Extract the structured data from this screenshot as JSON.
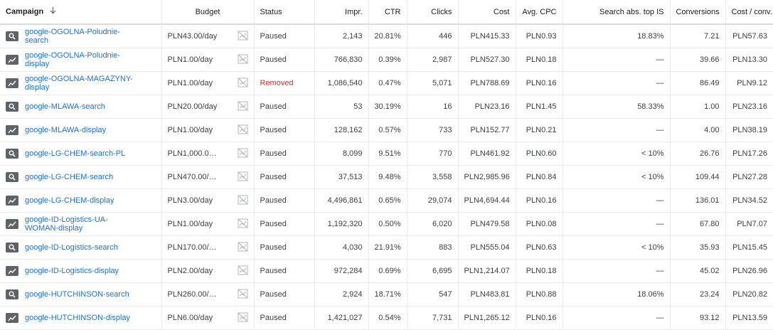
{
  "columns": {
    "campaign": "Campaign",
    "budget": "Budget",
    "status": "Status",
    "impr": "Impr.",
    "ctr": "CTR",
    "clicks": "Clicks",
    "cost": "Cost",
    "avg_cpc": "Avg. CPC",
    "search_abs_top_is": "Search abs. top IS",
    "conversions": "Conversions",
    "cost_per_conv": "Cost / conv."
  },
  "sort_icon": "arrow-down-icon",
  "colors": {
    "link": "#1a73e8",
    "removed": "#d93025",
    "icon_bg": "#5f6368"
  },
  "rows": [
    {
      "type": "search",
      "name": "google-OGOLNA-Poludnie-search",
      "budget": "PLN43.00/day",
      "status": "Paused",
      "impr": "2,143",
      "ctr": "20.81%",
      "clicks": "446",
      "cost": "PLN415.33",
      "avg_cpc": "PLN0.93",
      "abs_top": "18.83%",
      "conv": "7.21",
      "cpa": "PLN57.63"
    },
    {
      "type": "display",
      "name": "google-OGOLNA-Poludnie-display",
      "budget": "PLN1.00/day",
      "status": "Paused",
      "impr": "766,830",
      "ctr": "0.39%",
      "clicks": "2,987",
      "cost": "PLN527.30",
      "avg_cpc": "PLN0.18",
      "abs_top": "—",
      "conv": "39.66",
      "cpa": "PLN13.30"
    },
    {
      "type": "display",
      "name": "google-OGOLNA-MAGAZYNY-display",
      "budget": "PLN1.00/day",
      "status": "Removed",
      "impr": "1,086,540",
      "ctr": "0.47%",
      "clicks": "5,071",
      "cost": "PLN788.69",
      "avg_cpc": "PLN0.16",
      "abs_top": "—",
      "conv": "86.49",
      "cpa": "PLN9.12"
    },
    {
      "type": "search",
      "name": "google-MLAWA-search",
      "budget": "PLN20.00/day",
      "status": "Paused",
      "impr": "53",
      "ctr": "30.19%",
      "clicks": "16",
      "cost": "PLN23.16",
      "avg_cpc": "PLN1.45",
      "abs_top": "58.33%",
      "conv": "1.00",
      "cpa": "PLN23.16"
    },
    {
      "type": "display",
      "name": "google-MLAWA-display",
      "budget": "PLN1.00/day",
      "status": "Paused",
      "impr": "128,162",
      "ctr": "0.57%",
      "clicks": "733",
      "cost": "PLN152.77",
      "avg_cpc": "PLN0.21",
      "abs_top": "—",
      "conv": "4.00",
      "cpa": "PLN38.19"
    },
    {
      "type": "search",
      "name": "google-LG-CHEM-search-PL",
      "budget": "PLN1,000.00...",
      "status": "Paused",
      "impr": "8,099",
      "ctr": "9.51%",
      "clicks": "770",
      "cost": "PLN461.92",
      "avg_cpc": "PLN0.60",
      "abs_top": "< 10%",
      "conv": "26.76",
      "cpa": "PLN17.26"
    },
    {
      "type": "search",
      "name": "google-LG-CHEM-search",
      "budget": "PLN470.00/d...",
      "status": "Paused",
      "impr": "37,513",
      "ctr": "9.48%",
      "clicks": "3,558",
      "cost": "PLN2,985.96",
      "avg_cpc": "PLN0.84",
      "abs_top": "< 10%",
      "conv": "109.44",
      "cpa": "PLN27.28"
    },
    {
      "type": "display",
      "name": "google-LG-CHEM-display",
      "budget": "PLN3.00/day",
      "status": "Paused",
      "impr": "4,496,861",
      "ctr": "0.65%",
      "clicks": "29,074",
      "cost": "PLN4,694.44",
      "avg_cpc": "PLN0.16",
      "abs_top": "—",
      "conv": "136.01",
      "cpa": "PLN34.52"
    },
    {
      "type": "display",
      "name": "google-ID-Logistics-UA-WOMAN-display",
      "budget": "PLN1.00/day",
      "status": "Paused",
      "impr": "1,192,320",
      "ctr": "0.50%",
      "clicks": "6,020",
      "cost": "PLN479.58",
      "avg_cpc": "PLN0.08",
      "abs_top": "—",
      "conv": "67.80",
      "cpa": "PLN7.07"
    },
    {
      "type": "search",
      "name": "google-ID-Logistics-search",
      "budget": "PLN170.00/d...",
      "status": "Paused",
      "impr": "4,030",
      "ctr": "21.91%",
      "clicks": "883",
      "cost": "PLN555.04",
      "avg_cpc": "PLN0.63",
      "abs_top": "< 10%",
      "conv": "35.93",
      "cpa": "PLN15.45"
    },
    {
      "type": "display",
      "name": "google-ID-Logistics-display",
      "budget": "PLN2.00/day",
      "status": "Paused",
      "impr": "972,284",
      "ctr": "0.69%",
      "clicks": "6,695",
      "cost": "PLN1,214.07",
      "avg_cpc": "PLN0.18",
      "abs_top": "—",
      "conv": "45.02",
      "cpa": "PLN26.96"
    },
    {
      "type": "search",
      "name": "google-HUTCHINSON-search",
      "budget": "PLN260.00/d...",
      "status": "Paused",
      "impr": "2,924",
      "ctr": "18.71%",
      "clicks": "547",
      "cost": "PLN483.81",
      "avg_cpc": "PLN0.88",
      "abs_top": "18.06%",
      "conv": "23.24",
      "cpa": "PLN20.82"
    },
    {
      "type": "display",
      "name": "google-HUTCHINSON-display",
      "budget": "PLN6.00/day",
      "status": "Paused",
      "impr": "1,421,027",
      "ctr": "0.54%",
      "clicks": "7,731",
      "cost": "PLN1,265.12",
      "avg_cpc": "PLN0.16",
      "abs_top": "—",
      "conv": "93.12",
      "cpa": "PLN13.59"
    }
  ]
}
